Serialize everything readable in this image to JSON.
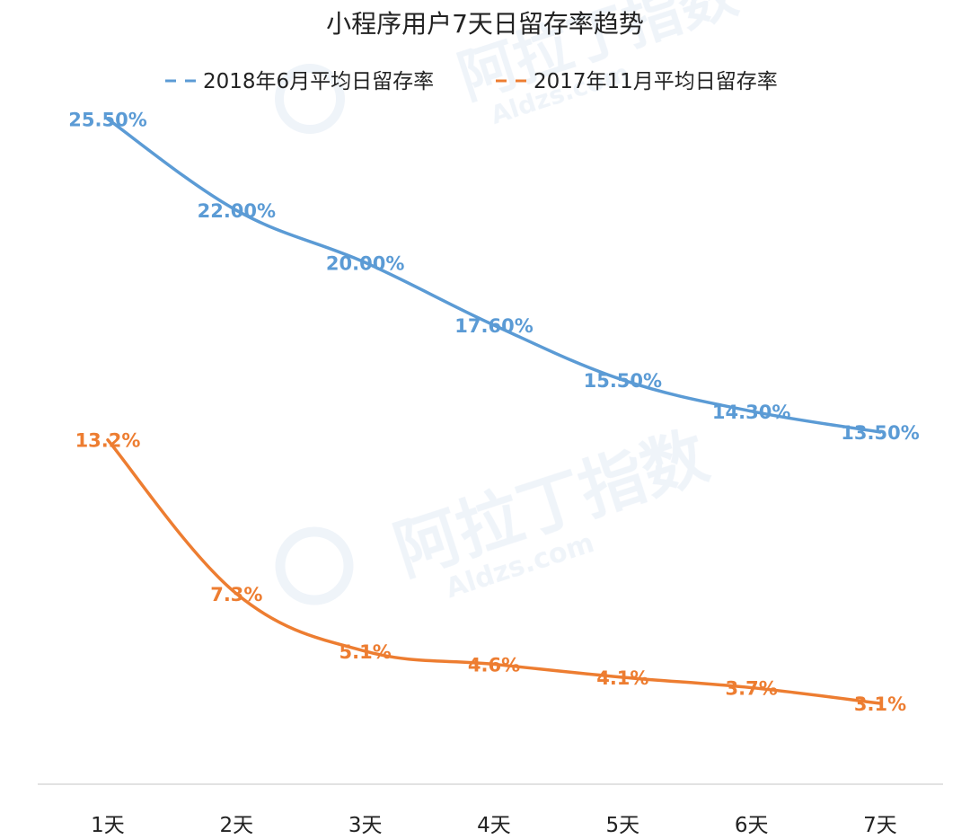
{
  "chart_data": {
    "type": "line",
    "title": "小程序用户7天日留存率趋势",
    "categories": [
      "1天",
      "2天",
      "3天",
      "4天",
      "5天",
      "6天",
      "7天"
    ],
    "series": [
      {
        "name": "2018年6月平均日留存率",
        "color": "#5b9bd5",
        "values": [
          25.5,
          22.0,
          20.0,
          17.6,
          15.5,
          14.3,
          13.5
        ],
        "labels": [
          "25.50%",
          "22.00%",
          "20.00%",
          "17.60%",
          "15.50%",
          "14.30%",
          "13.50%"
        ]
      },
      {
        "name": "2017年11月平均日留存率",
        "color": "#ed7d31",
        "values": [
          13.2,
          7.3,
          5.1,
          4.6,
          4.1,
          3.7,
          3.1
        ],
        "labels": [
          "13.2%",
          "7.3%",
          "5.1%",
          "4.6%",
          "4.1%",
          "3.7%",
          "3.1%"
        ]
      }
    ],
    "xlabel": "",
    "ylabel": "",
    "ylim": [
      0,
      28
    ],
    "grid": false,
    "legend_position": "top-center"
  },
  "watermark": {
    "brand": "阿拉丁指数",
    "domain": "Aldzs.com"
  }
}
